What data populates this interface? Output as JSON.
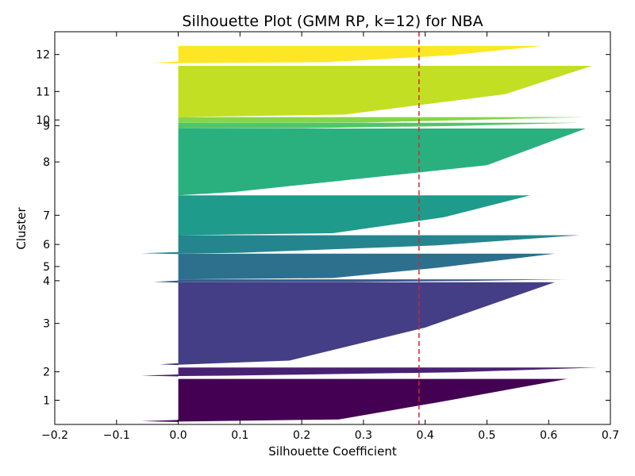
{
  "chart_data": {
    "type": "silhouette",
    "title": "Silhouette Plot (GMM RP, k=12) for NBA",
    "xlabel": "Silhouette Coefficient",
    "ylabel": "Cluster",
    "xlim": [
      -0.2,
      0.7
    ],
    "x_ticks": [
      -0.2,
      -0.1,
      0.0,
      0.1,
      0.2,
      0.3,
      0.4,
      0.5,
      0.6,
      0.7
    ],
    "x_tick_labels": [
      "−0.2",
      "−0.1",
      "0.0",
      "0.1",
      "0.2",
      "0.3",
      "0.4",
      "0.5",
      "0.6",
      "0.7"
    ],
    "ylim": [
      0,
      1380
    ],
    "grid": false,
    "average_silhouette": 0.39,
    "average_line_color": "#d62728",
    "clusters": [
      {
        "label": "1",
        "y_lower": 10,
        "y_upper": 160,
        "max": 0.63,
        "mid": 0.42,
        "low": 0.26,
        "min": -0.06,
        "color": "#440154"
      },
      {
        "label": "2",
        "y_lower": 170,
        "y_upper": 200,
        "max": 0.68,
        "mid": 0.45,
        "low": 0.08,
        "min": -0.06,
        "color": "#482173"
      },
      {
        "label": "3",
        "y_lower": 210,
        "y_upper": 500,
        "max": 0.61,
        "mid": 0.4,
        "low": 0.18,
        "min": -0.03,
        "color": "#433e85"
      },
      {
        "label": "4",
        "y_lower": 500,
        "y_upper": 510,
        "max": 0.63,
        "mid": 0.48,
        "low": 0.28,
        "min": -0.04,
        "color": "#38598c"
      },
      {
        "label": "5",
        "y_lower": 510,
        "y_upper": 600,
        "max": 0.61,
        "mid": 0.42,
        "low": 0.25,
        "min": 0.0,
        "color": "#2d708e"
      },
      {
        "label": "6",
        "y_lower": 600,
        "y_upper": 665,
        "max": 0.65,
        "mid": 0.42,
        "low": 0.1,
        "min": -0.06,
        "color": "#25858e"
      },
      {
        "label": "7",
        "y_lower": 665,
        "y_upper": 805,
        "max": 0.57,
        "mid": 0.43,
        "low": 0.25,
        "min": 0.0,
        "color": "#1e9b8a"
      },
      {
        "label": "8",
        "y_lower": 805,
        "y_upper": 1040,
        "max": 0.66,
        "mid": 0.5,
        "low": 0.09,
        "min": 0.0,
        "color": "#2ab07f"
      },
      {
        "label": "9",
        "y_lower": 1040,
        "y_upper": 1060,
        "max": 0.65,
        "mid": 0.45,
        "low": 0.2,
        "min": 0.0,
        "color": "#52c569"
      },
      {
        "label": "10",
        "y_lower": 1060,
        "y_upper": 1080,
        "max": 0.66,
        "mid": 0.45,
        "low": 0.3,
        "min": 0.0,
        "color": "#86d549"
      },
      {
        "label": "11",
        "y_lower": 1080,
        "y_upper": 1260,
        "max": 0.67,
        "mid": 0.53,
        "low": 0.27,
        "min": 0.0,
        "color": "#c2df23"
      },
      {
        "label": "12",
        "y_lower": 1270,
        "y_upper": 1330,
        "max": 0.59,
        "mid": 0.44,
        "low": 0.24,
        "min": -0.04,
        "color": "#fde725"
      }
    ]
  }
}
